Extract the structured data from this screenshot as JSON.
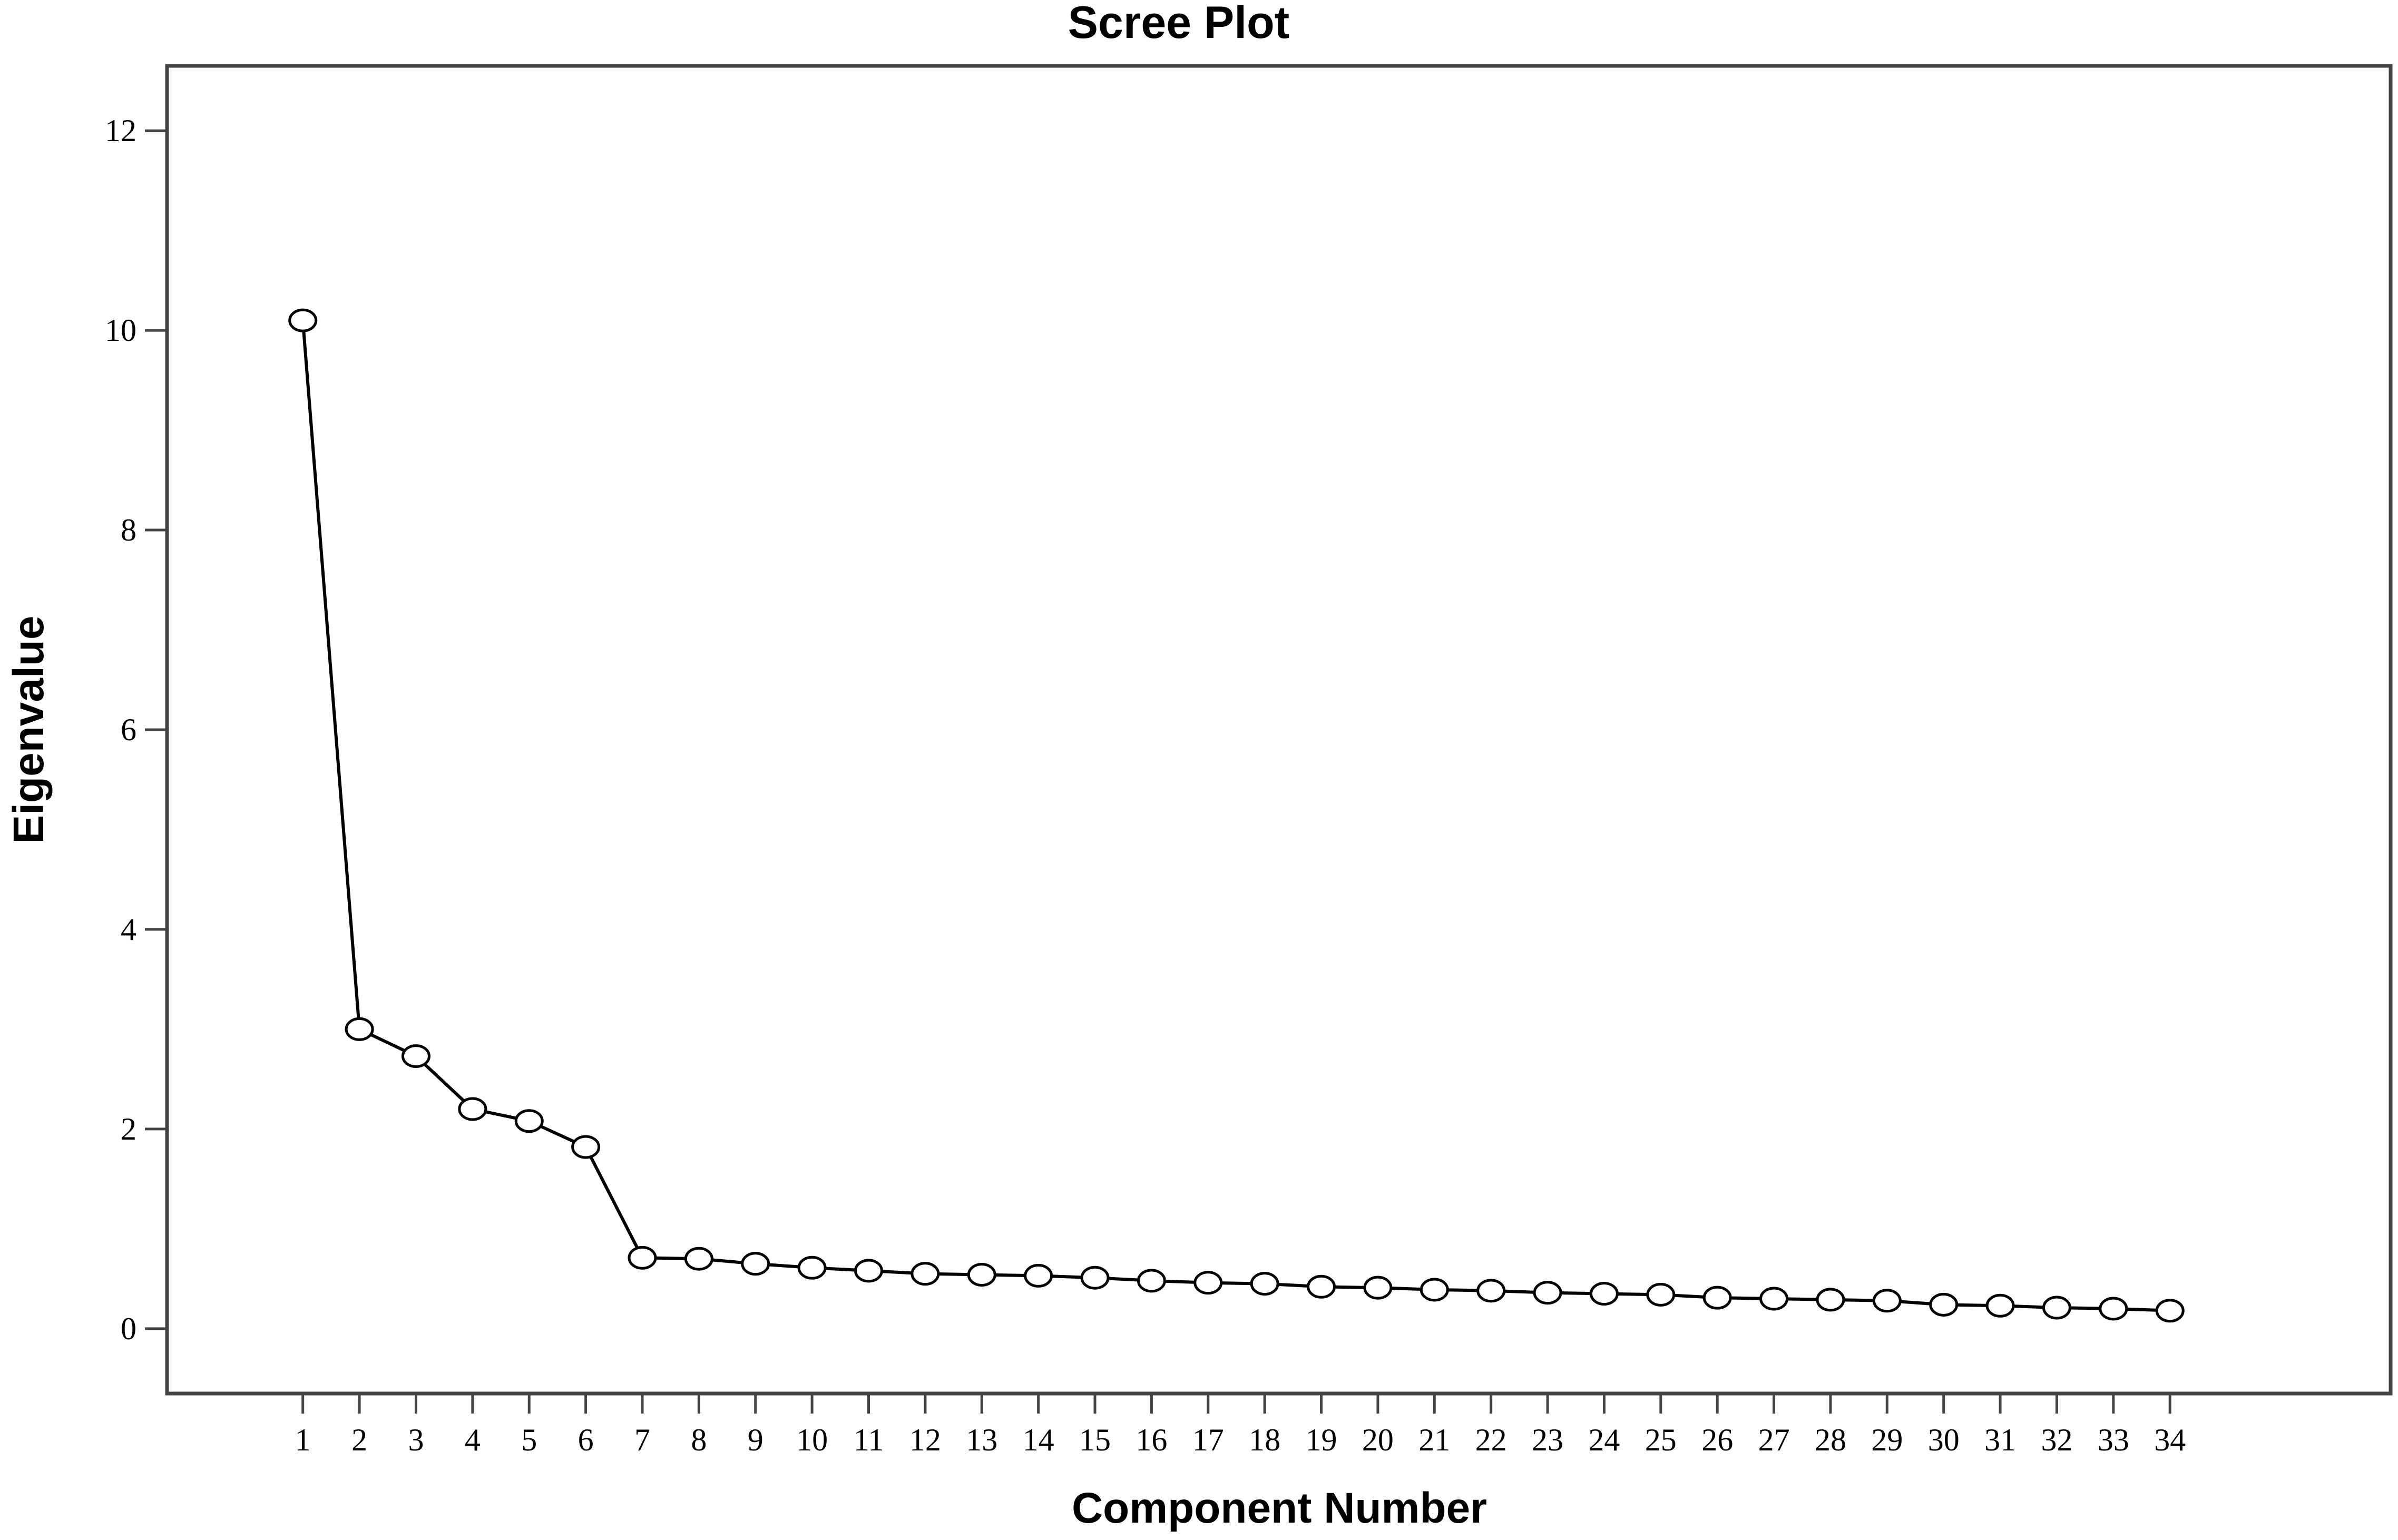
{
  "chart_data": {
    "type": "line",
    "title": "Scree Plot",
    "xlabel": "Component Number",
    "ylabel": "Eigenvalue",
    "x": [
      1,
      2,
      3,
      4,
      5,
      6,
      7,
      8,
      9,
      10,
      11,
      12,
      13,
      14,
      15,
      16,
      17,
      18,
      19,
      20,
      21,
      22,
      23,
      24,
      25,
      26,
      27,
      28,
      29,
      30,
      31,
      32,
      33,
      34
    ],
    "xticks": [
      "1",
      "2",
      "3",
      "4",
      "5",
      "6",
      "7",
      "8",
      "9",
      "10",
      "11",
      "12",
      "13",
      "14",
      "15",
      "16",
      "17",
      "18",
      "19",
      "20",
      "21",
      "22",
      "23",
      "24",
      "25",
      "26",
      "27",
      "28",
      "29",
      "30",
      "31",
      "32",
      "33",
      "34"
    ],
    "yticks": [
      0,
      2,
      4,
      6,
      8,
      10,
      12
    ],
    "ytick_labels": [
      "0",
      "2",
      "4",
      "6",
      "8",
      "10",
      "12"
    ],
    "ylim": [
      -0.65,
      12.65
    ],
    "xlim": [
      -1.4,
      37.9
    ],
    "grid": false,
    "legend": "none",
    "series": [
      {
        "values": [
          10.1,
          3.0,
          2.73,
          2.2,
          2.08,
          1.82,
          0.71,
          0.7,
          0.65,
          0.61,
          0.58,
          0.55,
          0.54,
          0.53,
          0.51,
          0.48,
          0.46,
          0.45,
          0.42,
          0.41,
          0.39,
          0.38,
          0.36,
          0.35,
          0.34,
          0.31,
          0.3,
          0.29,
          0.28,
          0.24,
          0.23,
          0.21,
          0.2,
          0.18
        ],
        "color": "#000000",
        "marker": "open-circle"
      }
    ]
  }
}
